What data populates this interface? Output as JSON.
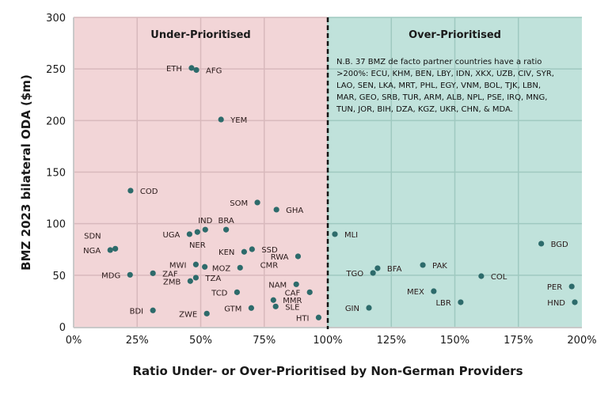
{
  "chart_data": {
    "type": "scatter",
    "xlabel": "Ratio Under- or Over-Prioritised by Non-German Providers",
    "ylabel": "BMZ 2023 bilateral ODA ($m)",
    "xlim": [
      0,
      200
    ],
    "ylim": [
      0,
      300
    ],
    "x_unit": "%",
    "xticks": [
      "0%",
      "25%",
      "50%",
      "75%",
      "100%",
      "125%",
      "150%",
      "175%",
      "200%"
    ],
    "yticks": [
      "0",
      "50",
      "100",
      "150",
      "200",
      "250",
      "300"
    ],
    "grid": true,
    "threshold_x": 100,
    "regions": [
      {
        "label": "Under-Prioritised",
        "color": "#f2d5d7"
      },
      {
        "label": "Over-Prioritised",
        "color": "#c0e2db"
      }
    ],
    "point_color": "#2d6b6b",
    "note": [
      "N.B. 37 BMZ de facto partner countries have a ratio",
      ">200%: ECU, KHM, BEN, LBY, IDN, XKX, UZB, CIV, SYR,",
      "LAO, SEN, LKA, MRT, PHL, EGY, VNM, BOL, TJK, LBN,",
      "MAR, GEO, SRB, TUR, ARM, ALB, NPL, PSE, IRQ, MNG,",
      "TUN, JOR, BIH, DZA, KGZ, UKR, CHN, & MDA."
    ],
    "points": [
      {
        "label": "ETH",
        "x": 46.4,
        "y": 251,
        "side": "left"
      },
      {
        "label": "AFG",
        "x": 48.3,
        "y": 249,
        "side": "right"
      },
      {
        "label": "YEM",
        "x": 58.0,
        "y": 201,
        "side": "right"
      },
      {
        "label": "COD",
        "x": 22.4,
        "y": 132,
        "side": "right"
      },
      {
        "label": "SOM",
        "x": 72.3,
        "y": 120.5,
        "side": "left"
      },
      {
        "label": "GHA",
        "x": 79.8,
        "y": 113.6,
        "side": "right"
      },
      {
        "label": "IND",
        "x": 51.8,
        "y": 94.2,
        "side": "above"
      },
      {
        "label": "BRA",
        "x": 60.0,
        "y": 94.2,
        "side": "above"
      },
      {
        "label": "UGA",
        "x": 45.6,
        "y": 89.8,
        "side": "left"
      },
      {
        "label": "NER",
        "x": 48.7,
        "y": 91.9,
        "side": "below"
      },
      {
        "label": "SDN",
        "x": 16.4,
        "y": 75.7,
        "side": "aboveleft"
      },
      {
        "label": "NGA",
        "x": 14.4,
        "y": 74.4,
        "side": "left"
      },
      {
        "label": "KEN",
        "x": 67.1,
        "y": 72.7,
        "side": "left"
      },
      {
        "label": "SSD",
        "x": 70.2,
        "y": 75.2,
        "side": "right"
      },
      {
        "label": "RWA",
        "x": 88.3,
        "y": 68.3,
        "side": "left"
      },
      {
        "label": "MWI",
        "x": 48.1,
        "y": 60.4,
        "side": "left"
      },
      {
        "label": "CMR",
        "x": 51.6,
        "y": 58.1,
        "side": "farright"
      },
      {
        "label": "MOZ",
        "x": 65.5,
        "y": 57.3,
        "side": "left"
      },
      {
        "label": "MDG",
        "x": 22.2,
        "y": 50.4,
        "side": "left"
      },
      {
        "label": "ZAF",
        "x": 31.2,
        "y": 51.9,
        "side": "right"
      },
      {
        "label": "TZA",
        "x": 48.1,
        "y": 47.6,
        "side": "right"
      },
      {
        "label": "ZMB",
        "x": 45.9,
        "y": 44.3,
        "side": "left"
      },
      {
        "label": "NAM",
        "x": 87.6,
        "y": 41.2,
        "side": "left"
      },
      {
        "label": "TCD",
        "x": 64.3,
        "y": 33.5,
        "side": "left"
      },
      {
        "label": "CAF",
        "x": 92.9,
        "y": 33.5,
        "side": "left"
      },
      {
        "label": "MMR",
        "x": 78.6,
        "y": 25.9,
        "side": "right"
      },
      {
        "label": "SLE",
        "x": 79.5,
        "y": 19.7,
        "side": "right"
      },
      {
        "label": "GTM",
        "x": 69.9,
        "y": 18.2,
        "side": "left"
      },
      {
        "label": "BDI",
        "x": 31.2,
        "y": 15.9,
        "side": "left"
      },
      {
        "label": "ZWE",
        "x": 52.4,
        "y": 12.8,
        "side": "left"
      },
      {
        "label": "HTI",
        "x": 96.4,
        "y": 9.0,
        "side": "left"
      },
      {
        "label": "MLI",
        "x": 102.8,
        "y": 89.8,
        "side": "right"
      },
      {
        "label": "BGD",
        "x": 184.0,
        "y": 80.6,
        "side": "right"
      },
      {
        "label": "PAK",
        "x": 137.4,
        "y": 59.9,
        "side": "right"
      },
      {
        "label": "BFA",
        "x": 119.6,
        "y": 56.8,
        "side": "right"
      },
      {
        "label": "TGO",
        "x": 117.8,
        "y": 52.2,
        "side": "left"
      },
      {
        "label": "COL",
        "x": 160.4,
        "y": 49.1,
        "side": "right"
      },
      {
        "label": "PER",
        "x": 196.0,
        "y": 39.1,
        "side": "left"
      },
      {
        "label": "MEX",
        "x": 141.7,
        "y": 34.5,
        "side": "left"
      },
      {
        "label": "HND",
        "x": 197.2,
        "y": 23.8,
        "side": "left"
      },
      {
        "label": "LBR",
        "x": 152.3,
        "y": 23.8,
        "side": "left"
      },
      {
        "label": "GIN",
        "x": 116.2,
        "y": 18.4,
        "side": "left"
      }
    ]
  }
}
